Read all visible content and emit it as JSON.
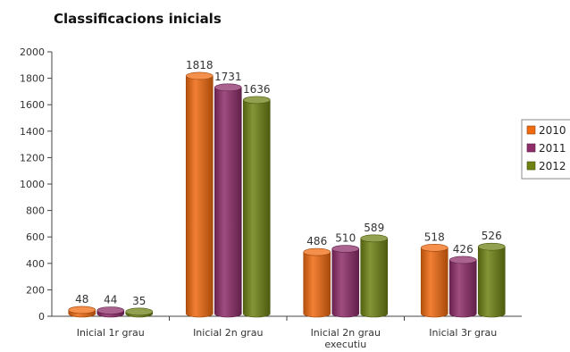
{
  "chart_data": {
    "type": "bar",
    "title": "Classificacions inicials",
    "xlabel": "",
    "ylabel": "",
    "ylim": [
      0,
      2000
    ],
    "yticks": [
      0,
      200,
      400,
      600,
      800,
      1000,
      1200,
      1400,
      1600,
      1800,
      2000
    ],
    "categories": [
      [
        "Inicial 1r grau"
      ],
      [
        "Inicial 2n grau"
      ],
      [
        "Inicial 2n grau",
        "executiu"
      ],
      [
        "Inicial 3r grau"
      ]
    ],
    "series": [
      {
        "name": "2010",
        "color": "#f06a10",
        "values": [
          48,
          1818,
          486,
          518
        ]
      },
      {
        "name": "2011",
        "color": "#8e2d6a",
        "values": [
          44,
          1731,
          510,
          426
        ]
      },
      {
        "name": "2012",
        "color": "#6e8214",
        "values": [
          35,
          1636,
          589,
          526
        ]
      }
    ],
    "style": "3d-cylinder",
    "grid": false,
    "legend": "right"
  }
}
